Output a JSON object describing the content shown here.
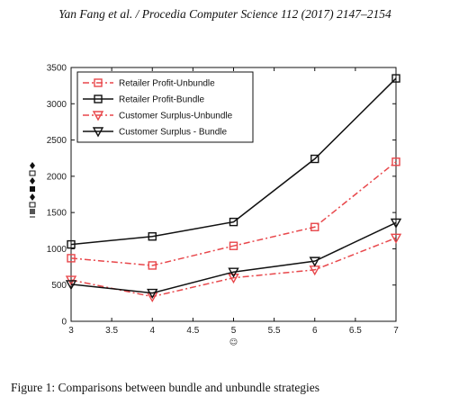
{
  "header": {
    "running_title": "Yan Fang et al. / Procedia Computer Science 112 (2017) 2147–2154"
  },
  "figure": {
    "caption": "Figure 1: Comparisons between bundle and unbundle strategies"
  },
  "chart_data": {
    "type": "line",
    "title": "",
    "xlabel": "☺",
    "ylabel": "",
    "x": [
      3,
      4,
      5,
      6,
      7
    ],
    "xlim": [
      3,
      7
    ],
    "ylim": [
      0,
      3500
    ],
    "xticks": [
      "3",
      "3.5",
      "4",
      "4.5",
      "5",
      "5.5",
      "6",
      "6.5",
      "7"
    ],
    "yticks": [
      "0",
      "500",
      "1000",
      "1500",
      "2000",
      "2500",
      "3000",
      "3500"
    ],
    "grid": false,
    "legend_position": "top-left",
    "series": [
      {
        "name": "Retailer Profit-Unbundle",
        "values": [
          870,
          770,
          1040,
          1300,
          2200
        ],
        "color": "#e8474b",
        "line_style": "dashdot",
        "marker": "square"
      },
      {
        "name": "Retailer Profit-Bundle",
        "values": [
          1060,
          1170,
          1370,
          2240,
          3350
        ],
        "color": "#111111",
        "line_style": "solid",
        "marker": "square"
      },
      {
        "name": "Customer Surplus-Unbundle",
        "values": [
          570,
          340,
          600,
          710,
          1150
        ],
        "color": "#e8474b",
        "line_style": "dashdot",
        "marker": "triangle-down"
      },
      {
        "name": "Customer Surplus - Bundle",
        "values": [
          510,
          390,
          680,
          830,
          1360
        ],
        "color": "#111111",
        "line_style": "solid",
        "marker": "triangle-down"
      }
    ]
  }
}
